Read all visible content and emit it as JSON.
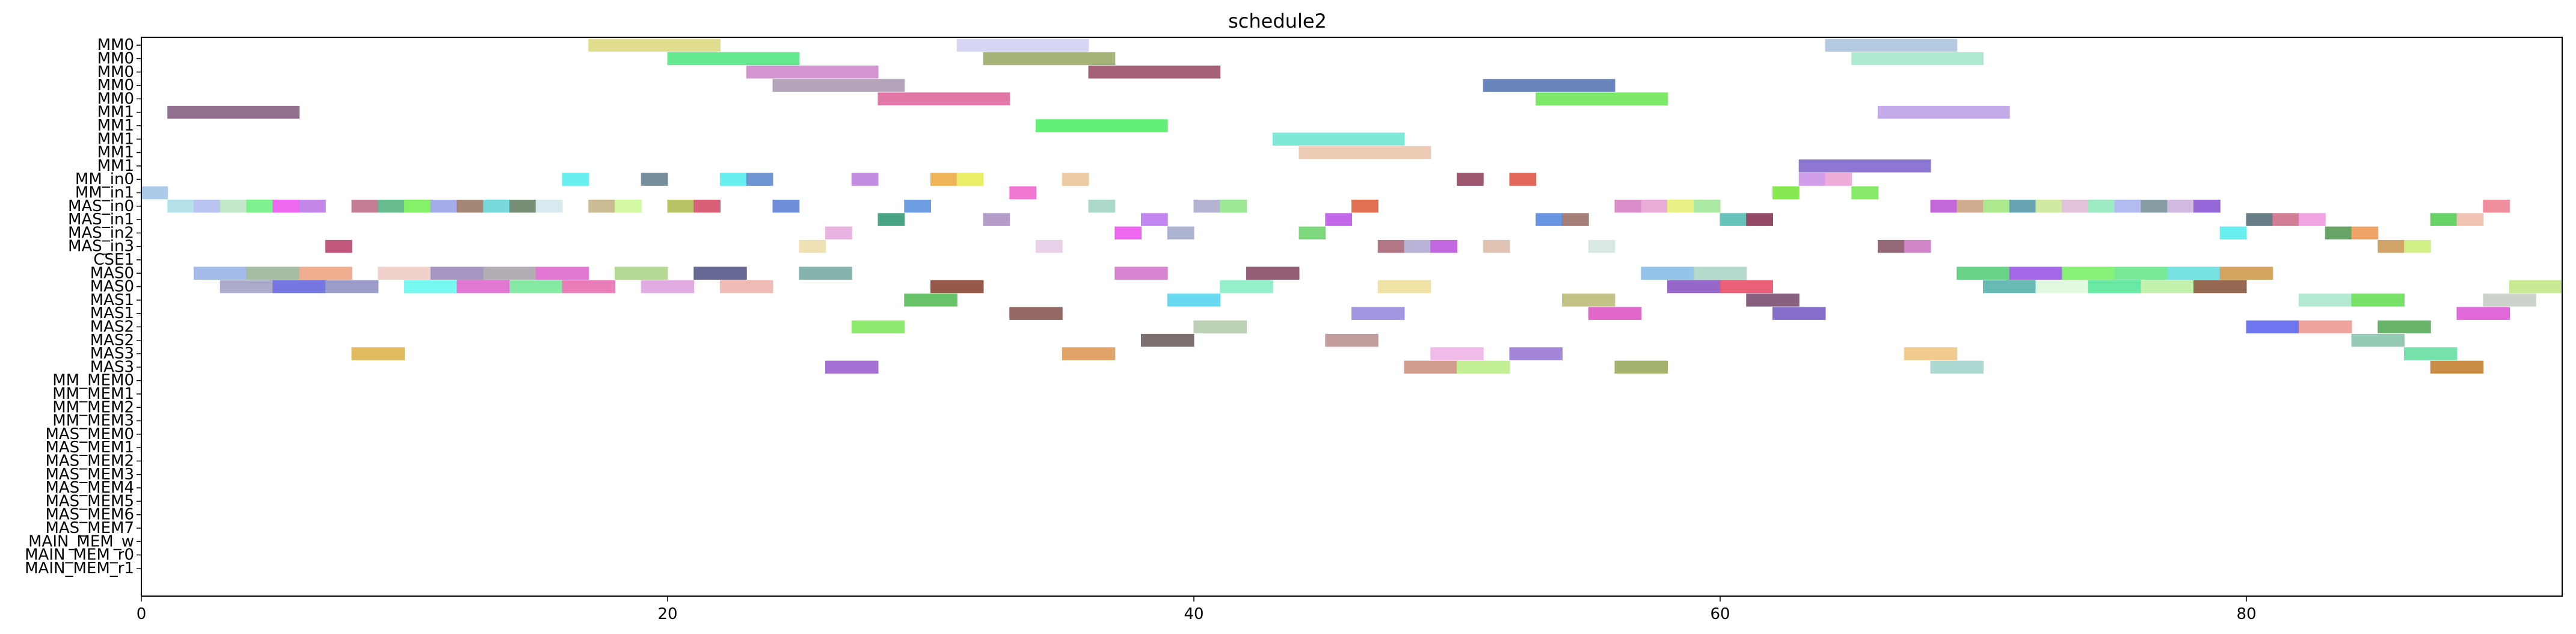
{
  "chart_data": {
    "type": "gantt",
    "title": "schedule2",
    "xlabel": "",
    "ylabel": "",
    "xlim": [
      0,
      92
    ],
    "xticks": [
      0,
      20,
      40,
      60,
      80
    ],
    "grid": false,
    "rows": [
      "MM0",
      "MM0",
      "MM0",
      "MM0",
      "MM0",
      "MM1",
      "MM1",
      "MM1",
      "MM1",
      "MM1",
      "MM_in0",
      "MM_in1",
      "MAS_in0",
      "MAS_in1",
      "MAS_in2",
      "MAS_in3",
      "CSE1",
      "MAS0",
      "MAS0",
      "MAS1",
      "MAS1",
      "MAS2",
      "MAS2",
      "MAS3",
      "MAS3",
      "MM_MEM0",
      "MM_MEM1",
      "MM_MEM2",
      "MM_MEM3",
      "MAS_MEM0",
      "MAS_MEM1",
      "MAS_MEM2",
      "MAS_MEM3",
      "MAS_MEM4",
      "MAS_MEM5",
      "MAS_MEM6",
      "MAS_MEM7",
      "MAIN_MEM_w",
      "MAIN_MEM_r0",
      "MAIN_MEM_r1"
    ],
    "tasks": [
      {
        "row": 0,
        "start": 17,
        "end": 22,
        "color": "#e0dc88"
      },
      {
        "row": 0,
        "start": 31,
        "end": 36,
        "color": "#d4d4f4"
      },
      {
        "row": 0,
        "start": 64,
        "end": 69,
        "color": "#b0c8e0"
      },
      {
        "row": 1,
        "start": 20,
        "end": 25,
        "color": "#5ce88a"
      },
      {
        "row": 1,
        "start": 32,
        "end": 37,
        "color": "#a0b070"
      },
      {
        "row": 1,
        "start": 65,
        "end": 70,
        "color": "#a8e8cc"
      },
      {
        "row": 2,
        "start": 23,
        "end": 28,
        "color": "#d090d0"
      },
      {
        "row": 2,
        "start": 36,
        "end": 41,
        "color": "#a05870"
      },
      {
        "row": 3,
        "start": 24,
        "end": 29,
        "color": "#b0a0b8"
      },
      {
        "row": 3,
        "start": 51,
        "end": 56,
        "color": "#6080b8"
      },
      {
        "row": 4,
        "start": 28,
        "end": 33,
        "color": "#e070a0"
      },
      {
        "row": 4,
        "start": 53,
        "end": 58,
        "color": "#78e860"
      },
      {
        "row": 5,
        "start": 1,
        "end": 6,
        "color": "#8c6888"
      },
      {
        "row": 5,
        "start": 66,
        "end": 71,
        "color": "#c0a8e8"
      },
      {
        "row": 6,
        "start": 34,
        "end": 39,
        "color": "#5cf070"
      },
      {
        "row": 7,
        "start": 43,
        "end": 48,
        "color": "#78e8d8"
      },
      {
        "row": 8,
        "start": 44,
        "end": 49,
        "color": "#ecc8b0"
      },
      {
        "row": 9,
        "start": 63,
        "end": 68,
        "color": "#8870d0"
      },
      {
        "row": 10,
        "start": 16,
        "end": 17,
        "color": "#60f0f0"
      },
      {
        "row": 10,
        "start": 19,
        "end": 20,
        "color": "#708898"
      },
      {
        "row": 10,
        "start": 22,
        "end": 23,
        "color": "#60f0f0"
      },
      {
        "row": 10,
        "start": 23,
        "end": 24,
        "color": "#6890d0"
      },
      {
        "row": 10,
        "start": 27,
        "end": 28,
        "color": "#c088e0"
      },
      {
        "row": 10,
        "start": 30,
        "end": 31,
        "color": "#f0b050"
      },
      {
        "row": 10,
        "start": 31,
        "end": 32,
        "color": "#e8f060"
      },
      {
        "row": 10,
        "start": 35,
        "end": 36,
        "color": "#ecc8a0"
      },
      {
        "row": 10,
        "start": 50,
        "end": 51,
        "color": "#985068"
      },
      {
        "row": 10,
        "start": 52,
        "end": 53,
        "color": "#e06050"
      },
      {
        "row": 10,
        "start": 63,
        "end": 64,
        "color": "#d098e8"
      },
      {
        "row": 10,
        "start": 64,
        "end": 65,
        "color": "#f0a8d8"
      },
      {
        "row": 11,
        "start": 0,
        "end": 1,
        "color": "#a8c8e8"
      },
      {
        "row": 11,
        "start": 33,
        "end": 34,
        "color": "#f070d0"
      },
      {
        "row": 11,
        "start": 62,
        "end": 63,
        "color": "#80e848"
      },
      {
        "row": 11,
        "start": 65,
        "end": 66,
        "color": "#80e860"
      },
      {
        "row": 12,
        "start": 1,
        "end": 2,
        "color": "#b0e0e8"
      },
      {
        "row": 12,
        "start": 2,
        "end": 3,
        "color": "#b8c0f0"
      },
      {
        "row": 12,
        "start": 3,
        "end": 4,
        "color": "#c0e8c8"
      },
      {
        "row": 12,
        "start": 4,
        "end": 5,
        "color": "#78f088"
      },
      {
        "row": 12,
        "start": 5,
        "end": 6,
        "color": "#f060f0"
      },
      {
        "row": 12,
        "start": 6,
        "end": 7,
        "color": "#c080e8"
      },
      {
        "row": 12,
        "start": 8,
        "end": 9,
        "color": "#c07890"
      },
      {
        "row": 12,
        "start": 9,
        "end": 10,
        "color": "#60b888"
      },
      {
        "row": 12,
        "start": 10,
        "end": 11,
        "color": "#80f060"
      },
      {
        "row": 12,
        "start": 11,
        "end": 12,
        "color": "#a0a8e8"
      },
      {
        "row": 12,
        "start": 12,
        "end": 13,
        "color": "#a08070"
      },
      {
        "row": 12,
        "start": 13,
        "end": 14,
        "color": "#70d8d8"
      },
      {
        "row": 12,
        "start": 14,
        "end": 15,
        "color": "#708870"
      },
      {
        "row": 12,
        "start": 15,
        "end": 16,
        "color": "#d8e8f0"
      },
      {
        "row": 12,
        "start": 17,
        "end": 18,
        "color": "#c8b890"
      },
      {
        "row": 12,
        "start": 18,
        "end": 19,
        "color": "#d0f8a0"
      },
      {
        "row": 12,
        "start": 20,
        "end": 21,
        "color": "#b8c060"
      },
      {
        "row": 12,
        "start": 21,
        "end": 22,
        "color": "#d85870"
      },
      {
        "row": 12,
        "start": 24,
        "end": 25,
        "color": "#6888d8"
      },
      {
        "row": 12,
        "start": 29,
        "end": 30,
        "color": "#6898e0"
      },
      {
        "row": 12,
        "start": 36,
        "end": 37,
        "color": "#a8d8c8"
      },
      {
        "row": 12,
        "start": 40,
        "end": 41,
        "color": "#b0b0d0"
      },
      {
        "row": 12,
        "start": 41,
        "end": 42,
        "color": "#98e890"
      },
      {
        "row": 12,
        "start": 46,
        "end": 47,
        "color": "#e06848"
      },
      {
        "row": 12,
        "start": 56,
        "end": 57,
        "color": "#d888c8"
      },
      {
        "row": 12,
        "start": 57,
        "end": 58,
        "color": "#e8a8d8"
      },
      {
        "row": 12,
        "start": 58,
        "end": 59,
        "color": "#e8f080"
      },
      {
        "row": 12,
        "start": 59,
        "end": 60,
        "color": "#a8e8a0"
      },
      {
        "row": 12,
        "start": 68,
        "end": 69,
        "color": "#c060d8"
      },
      {
        "row": 12,
        "start": 69,
        "end": 70,
        "color": "#d0a888"
      },
      {
        "row": 12,
        "start": 70,
        "end": 71,
        "color": "#a8e888"
      },
      {
        "row": 12,
        "start": 71,
        "end": 72,
        "color": "#60a0b0"
      },
      {
        "row": 12,
        "start": 72,
        "end": 73,
        "color": "#d0e8a0"
      },
      {
        "row": 12,
        "start": 73,
        "end": 74,
        "color": "#e0c0d8"
      },
      {
        "row": 12,
        "start": 74,
        "end": 75,
        "color": "#98e8c0"
      },
      {
        "row": 12,
        "start": 75,
        "end": 76,
        "color": "#b0b8f0"
      },
      {
        "row": 12,
        "start": 76,
        "end": 77,
        "color": "#8098a0"
      },
      {
        "row": 12,
        "start": 77,
        "end": 78,
        "color": "#d0b8e0"
      },
      {
        "row": 12,
        "start": 78,
        "end": 79,
        "color": "#9060d8"
      },
      {
        "row": 12,
        "start": 89,
        "end": 90,
        "color": "#f08898"
      },
      {
        "row": 13,
        "start": 28,
        "end": 29,
        "color": "#40a080"
      },
      {
        "row": 13,
        "start": 32,
        "end": 33,
        "color": "#b098c8"
      },
      {
        "row": 13,
        "start": 38,
        "end": 39,
        "color": "#c080f0"
      },
      {
        "row": 13,
        "start": 45,
        "end": 46,
        "color": "#c060e8"
      },
      {
        "row": 13,
        "start": 53,
        "end": 54,
        "color": "#6090e0"
      },
      {
        "row": 13,
        "start": 54,
        "end": 55,
        "color": "#a07870"
      },
      {
        "row": 13,
        "start": 60,
        "end": 61,
        "color": "#60c0b8"
      },
      {
        "row": 13,
        "start": 61,
        "end": 62,
        "color": "#904060"
      },
      {
        "row": 13,
        "start": 80,
        "end": 81,
        "color": "#607880"
      },
      {
        "row": 13,
        "start": 81,
        "end": 82,
        "color": "#d07890"
      },
      {
        "row": 13,
        "start": 82,
        "end": 83,
        "color": "#f0a0e0"
      },
      {
        "row": 13,
        "start": 87,
        "end": 88,
        "color": "#60d060"
      },
      {
        "row": 13,
        "start": 88,
        "end": 89,
        "color": "#f0c0b0"
      },
      {
        "row": 14,
        "start": 26,
        "end": 27,
        "color": "#e8b0e0"
      },
      {
        "row": 14,
        "start": 37,
        "end": 38,
        "color": "#f060f0"
      },
      {
        "row": 14,
        "start": 39,
        "end": 40,
        "color": "#a8b0d0"
      },
      {
        "row": 14,
        "start": 44,
        "end": 45,
        "color": "#78d878"
      },
      {
        "row": 14,
        "start": 79,
        "end": 80,
        "color": "#60f0f0"
      },
      {
        "row": 14,
        "start": 83,
        "end": 84,
        "color": "#60a060"
      },
      {
        "row": 14,
        "start": 84,
        "end": 85,
        "color": "#f0a060"
      },
      {
        "row": 15,
        "start": 7,
        "end": 8,
        "color": "#c05078"
      },
      {
        "row": 15,
        "start": 25,
        "end": 26,
        "color": "#f0e0b0"
      },
      {
        "row": 15,
        "start": 34,
        "end": 35,
        "color": "#e8d0e8"
      },
      {
        "row": 15,
        "start": 47,
        "end": 48,
        "color": "#b07080"
      },
      {
        "row": 15,
        "start": 48,
        "end": 49,
        "color": "#b8b0d8"
      },
      {
        "row": 15,
        "start": 49,
        "end": 50,
        "color": "#c060e0"
      },
      {
        "row": 15,
        "start": 51,
        "end": 52,
        "color": "#e0c0b0"
      },
      {
        "row": 15,
        "start": 55,
        "end": 56,
        "color": "#d8e8e0"
      },
      {
        "row": 15,
        "start": 66,
        "end": 67,
        "color": "#906070"
      },
      {
        "row": 15,
        "start": 67,
        "end": 68,
        "color": "#d080c8"
      },
      {
        "row": 15,
        "start": 85,
        "end": 86,
        "color": "#d0a060"
      },
      {
        "row": 15,
        "start": 86,
        "end": 87,
        "color": "#d0f080"
      },
      {
        "row": 17,
        "start": 2,
        "end": 4,
        "color": "#a0b8e8"
      },
      {
        "row": 17,
        "start": 4,
        "end": 6,
        "color": "#a0b8a0"
      },
      {
        "row": 17,
        "start": 6,
        "end": 8,
        "color": "#f0a888"
      },
      {
        "row": 17,
        "start": 9,
        "end": 11,
        "color": "#f0d0c8"
      },
      {
        "row": 17,
        "start": 11,
        "end": 13,
        "color": "#a090c0"
      },
      {
        "row": 17,
        "start": 13,
        "end": 15,
        "color": "#b0a8b0"
      },
      {
        "row": 17,
        "start": 15,
        "end": 17,
        "color": "#e070d0"
      },
      {
        "row": 17,
        "start": 18,
        "end": 20,
        "color": "#b0d890"
      },
      {
        "row": 17,
        "start": 21,
        "end": 23,
        "color": "#606090"
      },
      {
        "row": 17,
        "start": 25,
        "end": 27,
        "color": "#80b0a8"
      },
      {
        "row": 17,
        "start": 37,
        "end": 39,
        "color": "#d880d0"
      },
      {
        "row": 17,
        "start": 42,
        "end": 44,
        "color": "#905870"
      },
      {
        "row": 17,
        "start": 57,
        "end": 59,
        "color": "#90c0e8"
      },
      {
        "row": 17,
        "start": 59,
        "end": 61,
        "color": "#b0d8c8"
      },
      {
        "row": 17,
        "start": 69,
        "end": 71,
        "color": "#60d080"
      },
      {
        "row": 17,
        "start": 71,
        "end": 73,
        "color": "#a060e8"
      },
      {
        "row": 17,
        "start": 73,
        "end": 75,
        "color": "#80f070"
      },
      {
        "row": 17,
        "start": 75,
        "end": 77,
        "color": "#70e890"
      },
      {
        "row": 17,
        "start": 77,
        "end": 79,
        "color": "#70e0e0"
      },
      {
        "row": 17,
        "start": 79,
        "end": 81,
        "color": "#d0a058"
      },
      {
        "row": 18,
        "start": 3,
        "end": 5,
        "color": "#a8a8c8"
      },
      {
        "row": 18,
        "start": 5,
        "end": 7,
        "color": "#7070e0"
      },
      {
        "row": 18,
        "start": 7,
        "end": 9,
        "color": "#9898c8"
      },
      {
        "row": 18,
        "start": 10,
        "end": 12,
        "color": "#70f8f0"
      },
      {
        "row": 18,
        "start": 12,
        "end": 14,
        "color": "#e070d0"
      },
      {
        "row": 18,
        "start": 14,
        "end": 16,
        "color": "#80e8a0"
      },
      {
        "row": 18,
        "start": 16,
        "end": 18,
        "color": "#e878b8"
      },
      {
        "row": 18,
        "start": 19,
        "end": 21,
        "color": "#e0a8e0"
      },
      {
        "row": 18,
        "start": 22,
        "end": 24,
        "color": "#f0b8b0"
      },
      {
        "row": 18,
        "start": 30,
        "end": 32,
        "color": "#905040"
      },
      {
        "row": 18,
        "start": 41,
        "end": 43,
        "color": "#90f0c8"
      },
      {
        "row": 18,
        "start": 47,
        "end": 49,
        "color": "#f0e0a0"
      },
      {
        "row": 18,
        "start": 58,
        "end": 60,
        "color": "#9060c8"
      },
      {
        "row": 18,
        "start": 60,
        "end": 62,
        "color": "#e85870"
      },
      {
        "row": 18,
        "start": 70,
        "end": 72,
        "color": "#60b8b0"
      },
      {
        "row": 18,
        "start": 72,
        "end": 74,
        "color": "#e0f8e0"
      },
      {
        "row": 18,
        "start": 74,
        "end": 76,
        "color": "#60e8a0"
      },
      {
        "row": 18,
        "start": 76,
        "end": 78,
        "color": "#c0f0a8"
      },
      {
        "row": 18,
        "start": 78,
        "end": 80,
        "color": "#906048"
      },
      {
        "row": 18,
        "start": 90,
        "end": 92,
        "color": "#c8e890"
      },
      {
        "row": 19,
        "start": 29,
        "end": 31,
        "color": "#60c060"
      },
      {
        "row": 19,
        "start": 39,
        "end": 41,
        "color": "#60d8f0"
      },
      {
        "row": 19,
        "start": 54,
        "end": 56,
        "color": "#c0c080"
      },
      {
        "row": 19,
        "start": 61,
        "end": 63,
        "color": "#805878"
      },
      {
        "row": 19,
        "start": 82,
        "end": 84,
        "color": "#b0e8d0"
      },
      {
        "row": 19,
        "start": 84,
        "end": 86,
        "color": "#70e060"
      },
      {
        "row": 19,
        "start": 89,
        "end": 91,
        "color": "#c8d0c8"
      },
      {
        "row": 20,
        "start": 33,
        "end": 35,
        "color": "#906060"
      },
      {
        "row": 20,
        "start": 46,
        "end": 48,
        "color": "#a090e0"
      },
      {
        "row": 20,
        "start": 55,
        "end": 57,
        "color": "#e060c8"
      },
      {
        "row": 20,
        "start": 62,
        "end": 64,
        "color": "#8068c8"
      },
      {
        "row": 20,
        "start": 88,
        "end": 90,
        "color": "#e060d8"
      },
      {
        "row": 21,
        "start": 27,
        "end": 29,
        "color": "#88e868"
      },
      {
        "row": 21,
        "start": 40,
        "end": 42,
        "color": "#b8d0b0"
      },
      {
        "row": 21,
        "start": 80,
        "end": 82,
        "color": "#6870f0"
      },
      {
        "row": 21,
        "start": 82,
        "end": 84,
        "color": "#f0a098"
      },
      {
        "row": 21,
        "start": 85,
        "end": 87,
        "color": "#60b060"
      },
      {
        "row": 22,
        "start": 38,
        "end": 40,
        "color": "#786868"
      },
      {
        "row": 22,
        "start": 45,
        "end": 47,
        "color": "#c09898"
      },
      {
        "row": 22,
        "start": 84,
        "end": 86,
        "color": "#90c8b0"
      },
      {
        "row": 23,
        "start": 8,
        "end": 10,
        "color": "#e0b858"
      },
      {
        "row": 23,
        "start": 35,
        "end": 37,
        "color": "#e0a060"
      },
      {
        "row": 23,
        "start": 49,
        "end": 51,
        "color": "#f0b8e8"
      },
      {
        "row": 23,
        "start": 52,
        "end": 54,
        "color": "#a080d8"
      },
      {
        "row": 23,
        "start": 67,
        "end": 69,
        "color": "#f0c888"
      },
      {
        "row": 23,
        "start": 86,
        "end": 88,
        "color": "#70e0a8"
      },
      {
        "row": 24,
        "start": 26,
        "end": 28,
        "color": "#a068d0"
      },
      {
        "row": 24,
        "start": 48,
        "end": 50,
        "color": "#d09888"
      },
      {
        "row": 24,
        "start": 50,
        "end": 52,
        "color": "#c0f090"
      },
      {
        "row": 24,
        "start": 56,
        "end": 58,
        "color": "#a0b068"
      },
      {
        "row": 24,
        "start": 68,
        "end": 70,
        "color": "#a8d8d0"
      },
      {
        "row": 24,
        "start": 87,
        "end": 89,
        "color": "#c88840"
      }
    ]
  }
}
